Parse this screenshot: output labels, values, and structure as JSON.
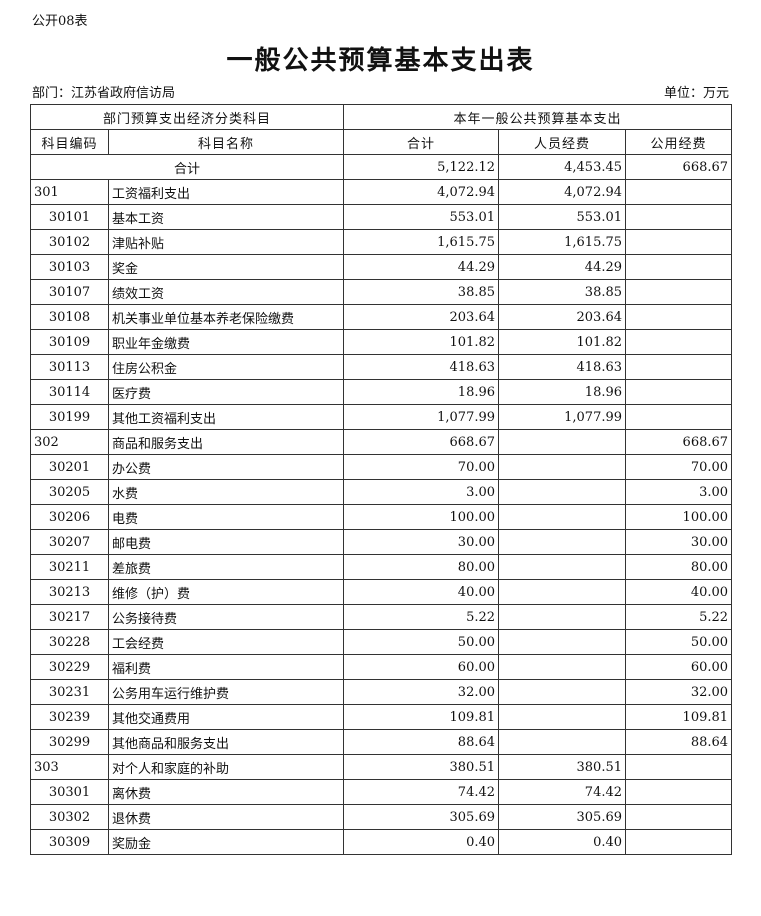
{
  "form_tag": "公开08表",
  "title": "一般公共预算基本支出表",
  "department": "部门：江苏省政府信访局",
  "unit": "单位：万元",
  "header": {
    "group_left": "部门预算支出经济分类科目",
    "group_right": "本年一般公共预算基本支出",
    "columns": [
      "科目编码",
      "科目名称",
      "合计",
      "人员经费",
      "公用经费"
    ]
  },
  "total": {
    "label": "合计",
    "total": "5,122.12",
    "personnel": "4,453.45",
    "public": "668.67"
  },
  "rows": [
    {
      "code": "301",
      "name": "工资福利支出",
      "total": "4,072.94",
      "personnel": "4,072.94",
      "public": "",
      "level": 1
    },
    {
      "code": "30101",
      "name": "基本工资",
      "total": "553.01",
      "personnel": "553.01",
      "public": "",
      "level": 2
    },
    {
      "code": "30102",
      "name": "津贴补贴",
      "total": "1,615.75",
      "personnel": "1,615.75",
      "public": "",
      "level": 2
    },
    {
      "code": "30103",
      "name": "奖金",
      "total": "44.29",
      "personnel": "44.29",
      "public": "",
      "level": 2
    },
    {
      "code": "30107",
      "name": "绩效工资",
      "total": "38.85",
      "personnel": "38.85",
      "public": "",
      "level": 2
    },
    {
      "code": "30108",
      "name": "机关事业单位基本养老保险缴费",
      "total": "203.64",
      "personnel": "203.64",
      "public": "",
      "level": 2
    },
    {
      "code": "30109",
      "name": "职业年金缴费",
      "total": "101.82",
      "personnel": "101.82",
      "public": "",
      "level": 2
    },
    {
      "code": "30113",
      "name": "住房公积金",
      "total": "418.63",
      "personnel": "418.63",
      "public": "",
      "level": 2
    },
    {
      "code": "30114",
      "name": "医疗费",
      "total": "18.96",
      "personnel": "18.96",
      "public": "",
      "level": 2
    },
    {
      "code": "30199",
      "name": "其他工资福利支出",
      "total": "1,077.99",
      "personnel": "1,077.99",
      "public": "",
      "level": 2
    },
    {
      "code": "302",
      "name": "商品和服务支出",
      "total": "668.67",
      "personnel": "",
      "public": "668.67",
      "level": 1
    },
    {
      "code": "30201",
      "name": "办公费",
      "total": "70.00",
      "personnel": "",
      "public": "70.00",
      "level": 2
    },
    {
      "code": "30205",
      "name": "水费",
      "total": "3.00",
      "personnel": "",
      "public": "3.00",
      "level": 2
    },
    {
      "code": "30206",
      "name": "电费",
      "total": "100.00",
      "personnel": "",
      "public": "100.00",
      "level": 2
    },
    {
      "code": "30207",
      "name": "邮电费",
      "total": "30.00",
      "personnel": "",
      "public": "30.00",
      "level": 2
    },
    {
      "code": "30211",
      "name": "差旅费",
      "total": "80.00",
      "personnel": "",
      "public": "80.00",
      "level": 2
    },
    {
      "code": "30213",
      "name": "维修（护）费",
      "total": "40.00",
      "personnel": "",
      "public": "40.00",
      "level": 2
    },
    {
      "code": "30217",
      "name": "公务接待费",
      "total": "5.22",
      "personnel": "",
      "public": "5.22",
      "level": 2
    },
    {
      "code": "30228",
      "name": "工会经费",
      "total": "50.00",
      "personnel": "",
      "public": "50.00",
      "level": 2
    },
    {
      "code": "30229",
      "name": "福利费",
      "total": "60.00",
      "personnel": "",
      "public": "60.00",
      "level": 2
    },
    {
      "code": "30231",
      "name": "公务用车运行维护费",
      "total": "32.00",
      "personnel": "",
      "public": "32.00",
      "level": 2
    },
    {
      "code": "30239",
      "name": "其他交通费用",
      "total": "109.81",
      "personnel": "",
      "public": "109.81",
      "level": 2
    },
    {
      "code": "30299",
      "name": "其他商品和服务支出",
      "total": "88.64",
      "personnel": "",
      "public": "88.64",
      "level": 2
    },
    {
      "code": "303",
      "name": "对个人和家庭的补助",
      "total": "380.51",
      "personnel": "380.51",
      "public": "",
      "level": 1
    },
    {
      "code": "30301",
      "name": "离休费",
      "total": "74.42",
      "personnel": "74.42",
      "public": "",
      "level": 2
    },
    {
      "code": "30302",
      "name": "退休费",
      "total": "305.69",
      "personnel": "305.69",
      "public": "",
      "level": 2
    },
    {
      "code": "30309",
      "name": "奖励金",
      "total": "0.40",
      "personnel": "0.40",
      "public": "",
      "level": 2
    }
  ]
}
